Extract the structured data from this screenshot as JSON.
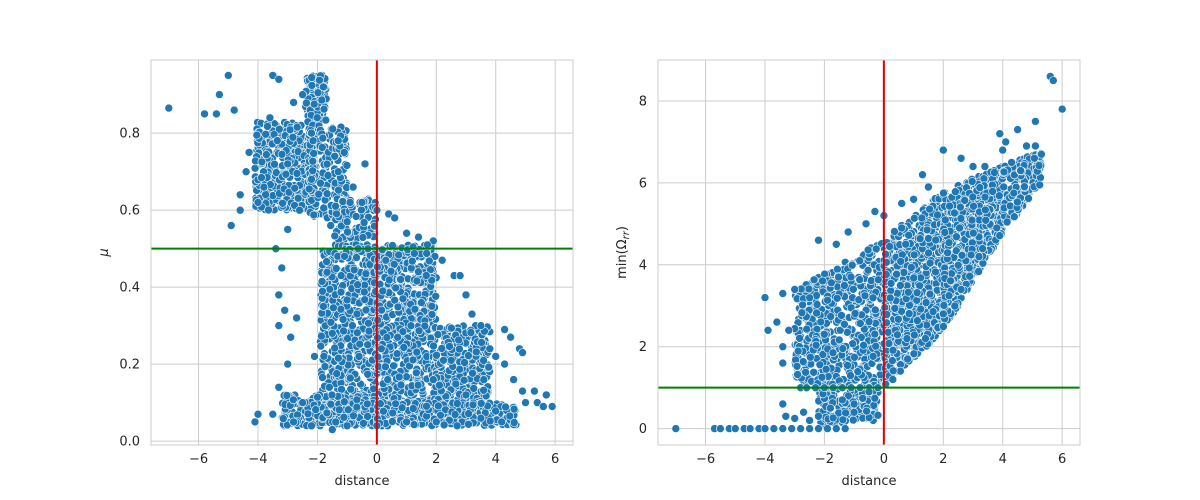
{
  "chart_data": [
    {
      "type": "scatter",
      "xlabel": "distance",
      "ylabel": "μ",
      "xlim": [
        -7.6,
        6.6
      ],
      "ylim": [
        -0.01,
        0.99
      ],
      "xticks": [
        -6,
        -4,
        -2,
        0,
        2,
        4,
        6
      ],
      "yticks": [
        0.0,
        0.2,
        0.4,
        0.6,
        0.8
      ],
      "grid": true,
      "series_color": "#1f77b4",
      "reference_lines": [
        {
          "orientation": "vertical",
          "value": 0,
          "color": "#e00000"
        },
        {
          "orientation": "horizontal",
          "value": 0.5,
          "color": "#008000"
        }
      ],
      "points": [
        [
          -7.0,
          0.865
        ],
        [
          -5.8,
          0.85
        ],
        [
          -5.4,
          0.85
        ],
        [
          -5.3,
          0.9
        ],
        [
          -5.0,
          0.95
        ],
        [
          -4.8,
          0.86
        ],
        [
          -4.6,
          0.64
        ],
        [
          -4.4,
          0.7
        ],
        [
          -4.9,
          0.56
        ],
        [
          -4.6,
          0.6
        ],
        [
          -4.3,
          0.75
        ],
        [
          -3.5,
          0.95
        ],
        [
          -3.3,
          0.94
        ],
        [
          -3.0,
          0.55
        ],
        [
          -2.8,
          0.88
        ],
        [
          -3.4,
          0.5
        ],
        [
          -3.2,
          0.45
        ],
        [
          -3.3,
          0.38
        ],
        [
          -3.1,
          0.34
        ],
        [
          -3.3,
          0.3
        ],
        [
          -2.9,
          0.27
        ],
        [
          -3.0,
          0.2
        ],
        [
          -2.7,
          0.32
        ],
        [
          -4.0,
          0.07
        ],
        [
          -4.1,
          0.05
        ],
        [
          -3.5,
          0.07
        ],
        [
          -3.3,
          0.14
        ],
        [
          -2.2,
          0.68
        ],
        [
          -1.9,
          0.67
        ],
        [
          -1.3,
          0.7
        ],
        [
          -0.8,
          0.66
        ],
        [
          -0.5,
          0.62
        ],
        [
          -0.4,
          0.72
        ],
        [
          -1.1,
          0.75
        ],
        [
          -1.3,
          0.78
        ],
        [
          -0.9,
          0.62
        ],
        [
          0.0,
          0.6
        ],
        [
          0.4,
          0.59
        ],
        [
          0.6,
          0.58
        ],
        [
          1.0,
          0.54
        ],
        [
          1.4,
          0.53
        ],
        [
          1.9,
          0.52
        ],
        [
          1.7,
          0.51
        ],
        [
          2.2,
          0.47
        ],
        [
          2.6,
          0.43
        ],
        [
          2.8,
          0.43
        ],
        [
          3.0,
          0.38
        ],
        [
          3.2,
          0.33
        ],
        [
          3.5,
          0.3
        ],
        [
          3.8,
          0.24
        ],
        [
          4.0,
          0.22
        ],
        [
          4.3,
          0.2
        ],
        [
          4.6,
          0.16
        ],
        [
          4.9,
          0.13
        ],
        [
          5.0,
          0.1
        ],
        [
          5.3,
          0.13
        ],
        [
          5.4,
          0.1
        ],
        [
          5.6,
          0.09
        ],
        [
          5.9,
          0.09
        ],
        [
          5.7,
          0.12
        ],
        [
          4.2,
          0.05
        ],
        [
          3.5,
          0.06
        ],
        [
          2.7,
          0.04
        ],
        [
          2.0,
          0.05
        ],
        [
          1.0,
          0.05
        ],
        [
          0.0,
          0.04
        ],
        [
          -1.0,
          0.04
        ],
        [
          -1.5,
          0.03
        ],
        [
          -2.2,
          0.04
        ],
        [
          -2.8,
          0.05
        ],
        [
          4.3,
          0.29
        ],
        [
          4.5,
          0.27
        ],
        [
          4.8,
          0.24
        ],
        [
          4.9,
          0.23
        ],
        [
          3.6,
          0.16
        ],
        [
          2.5,
          0.21
        ],
        [
          1.5,
          0.36
        ],
        [
          0.8,
          0.42
        ],
        [
          0.3,
          0.47
        ],
        [
          -0.3,
          0.5
        ],
        [
          -1.2,
          0.43
        ],
        [
          -1.5,
          0.28
        ],
        [
          -1.8,
          0.35
        ],
        [
          -2.1,
          0.22
        ],
        [
          -1.6,
          0.14
        ],
        [
          -2.5,
          0.1
        ],
        [
          -0.6,
          0.22
        ],
        [
          0.7,
          0.27
        ],
        [
          1.9,
          0.16
        ],
        [
          3.0,
          0.12
        ],
        [
          -3.6,
          0.84
        ],
        [
          -2.5,
          0.9
        ],
        [
          -1.8,
          0.92
        ],
        [
          -2.2,
          0.8
        ],
        [
          -3.0,
          0.72
        ],
        [
          -3.8,
          0.66
        ],
        [
          -4.0,
          0.62
        ],
        [
          -2.6,
          0.6
        ],
        [
          -1.0,
          0.57
        ],
        [
          0.2,
          0.39
        ]
      ],
      "clusters": [
        {
          "x": [
            -2.4,
            -1.7
          ],
          "y": [
            0.83,
            0.95
          ],
          "n": 120
        },
        {
          "x": [
            -4.1,
            -2.1
          ],
          "y": [
            0.6,
            0.83
          ],
          "n": 400
        },
        {
          "x": [
            -2.3,
            -1.0
          ],
          "y": [
            0.58,
            0.82
          ],
          "n": 200
        },
        {
          "x": [
            -1.6,
            0.0
          ],
          "y": [
            0.49,
            0.63
          ],
          "n": 150
        },
        {
          "x": [
            -1.9,
            0.0
          ],
          "y": [
            0.05,
            0.5
          ],
          "n": 500
        },
        {
          "x": [
            0.0,
            2.0
          ],
          "y": [
            0.05,
            0.51
          ],
          "n": 600
        },
        {
          "x": [
            2.0,
            3.8
          ],
          "y": [
            0.05,
            0.3
          ],
          "n": 300
        },
        {
          "x": [
            -3.2,
            0.0
          ],
          "y": [
            0.04,
            0.12
          ],
          "n": 260
        },
        {
          "x": [
            0.0,
            4.7
          ],
          "y": [
            0.04,
            0.1
          ],
          "n": 260
        }
      ]
    },
    {
      "type": "scatter",
      "xlabel": "distance",
      "ylabel": "min(Ω",
      "ylabel_sub": "rr",
      "ylabel_suffix": ")",
      "xlim": [
        -7.6,
        6.6
      ],
      "ylim": [
        -0.4,
        9.0
      ],
      "xticks": [
        -6,
        -4,
        -2,
        0,
        2,
        4,
        6
      ],
      "yticks": [
        0,
        2,
        4,
        6,
        8
      ],
      "grid": true,
      "series_color": "#1f77b4",
      "reference_lines": [
        {
          "orientation": "vertical",
          "value": 0,
          "color": "#e00000"
        },
        {
          "orientation": "horizontal",
          "value": 1.0,
          "color": "#008000"
        }
      ],
      "points": [
        [
          -7.0,
          0.0
        ],
        [
          -5.7,
          0.0
        ],
        [
          -5.5,
          0.0
        ],
        [
          -5.2,
          0.0
        ],
        [
          -5.0,
          0.0
        ],
        [
          -4.7,
          0.0
        ],
        [
          -4.5,
          0.0
        ],
        [
          -4.2,
          0.0
        ],
        [
          -4.0,
          0.0
        ],
        [
          -3.7,
          0.0
        ],
        [
          -3.4,
          0.0
        ],
        [
          -3.1,
          0.0
        ],
        [
          -2.8,
          0.0
        ],
        [
          -2.5,
          0.0
        ],
        [
          -2.2,
          0.0
        ],
        [
          -1.9,
          0.0
        ],
        [
          -1.6,
          0.0
        ],
        [
          -1.3,
          0.0
        ],
        [
          -3.4,
          0.6
        ],
        [
          -3.3,
          0.3
        ],
        [
          -3.0,
          0.25
        ],
        [
          -2.7,
          0.4
        ],
        [
          -2.5,
          0.2
        ],
        [
          -2.2,
          0.3
        ],
        [
          -1.8,
          0.5
        ],
        [
          -1.4,
          0.7
        ],
        [
          -2.8,
          1.0
        ],
        [
          -2.6,
          1.0
        ],
        [
          -2.3,
          1.0
        ],
        [
          -2.0,
          1.0
        ],
        [
          -1.7,
          1.0
        ],
        [
          -1.4,
          1.0
        ],
        [
          -1.1,
          1.0
        ],
        [
          -0.8,
          1.0
        ],
        [
          -0.5,
          1.0
        ],
        [
          -0.2,
          1.0
        ],
        [
          -4.0,
          3.2
        ],
        [
          -3.9,
          2.4
        ],
        [
          -3.6,
          2.6
        ],
        [
          -3.4,
          3.3
        ],
        [
          -3.2,
          2.4
        ],
        [
          -3.4,
          2.0
        ],
        [
          -3.4,
          1.6
        ],
        [
          -3.0,
          3.4
        ],
        [
          -2.2,
          4.6
        ],
        [
          -1.6,
          4.5
        ],
        [
          -1.2,
          4.8
        ],
        [
          -0.6,
          5.0
        ],
        [
          -0.3,
          5.3
        ],
        [
          0.0,
          5.2
        ],
        [
          0.6,
          5.5
        ],
        [
          1.0,
          5.6
        ],
        [
          1.5,
          5.9
        ],
        [
          2.0,
          6.8
        ],
        [
          1.3,
          6.2
        ],
        [
          2.6,
          6.6
        ],
        [
          3.0,
          6.4
        ],
        [
          3.4,
          6.4
        ],
        [
          3.9,
          7.2
        ],
        [
          4.0,
          6.8
        ],
        [
          4.1,
          7.0
        ],
        [
          4.5,
          7.3
        ],
        [
          4.6,
          6.3
        ],
        [
          5.1,
          7.5
        ],
        [
          5.1,
          6.9
        ],
        [
          5.3,
          6.7
        ],
        [
          5.6,
          8.6
        ],
        [
          5.7,
          8.5
        ],
        [
          6.0,
          7.8
        ],
        [
          4.3,
          6.5
        ],
        [
          4.8,
          6.9
        ],
        [
          3.8,
          4.9
        ],
        [
          3.2,
          4.2
        ],
        [
          2.6,
          3.4
        ],
        [
          2.0,
          2.8
        ],
        [
          1.4,
          2.2
        ],
        [
          0.8,
          1.7
        ],
        [
          0.3,
          1.2
        ],
        [
          -0.5,
          0.9
        ],
        [
          -1.0,
          0.6
        ]
      ],
      "bands": [
        {
          "x": [
            -3.0,
            0.0
          ],
          "y_low": [
            1.0,
            1.0
          ],
          "y_high": [
            3.4,
            4.6
          ],
          "n": 550
        },
        {
          "x": [
            0.0,
            2.0
          ],
          "y_low": [
            1.0,
            2.4
          ],
          "y_high": [
            4.6,
            5.8
          ],
          "n": 650
        },
        {
          "x": [
            2.0,
            4.0
          ],
          "y_low": [
            2.4,
            4.8
          ],
          "y_high": [
            5.8,
            6.4
          ],
          "n": 600
        },
        {
          "x": [
            4.0,
            5.3
          ],
          "y_low": [
            4.8,
            6.0
          ],
          "y_high": [
            6.4,
            6.8
          ],
          "n": 160
        },
        {
          "x": [
            -2.2,
            -0.2
          ],
          "y_low": [
            0.05,
            0.2
          ],
          "y_high": [
            1.0,
            1.0
          ],
          "n": 120
        }
      ]
    }
  ]
}
